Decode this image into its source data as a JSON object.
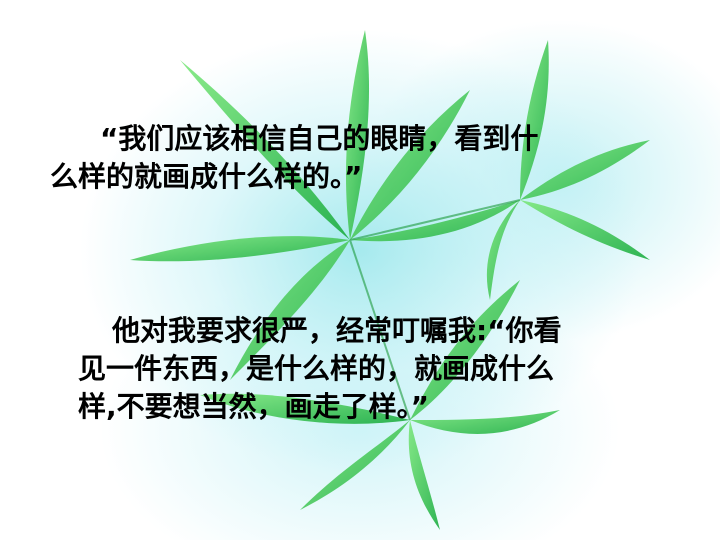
{
  "slide": {
    "quote1_lines": [
      "“我们应该相信自己的眼睛，看到什",
      "么样的就画成什么样的。”"
    ],
    "quote2_lines": [
      "他对我要求很严，经常叮嘱我:“你看",
      "见一件东西，是什么样的，就画成什么",
      "样,不要想当然，画走了样。”"
    ]
  },
  "colors": {
    "leaf": "#3fd05a",
    "leaf_dark": "#22a83f",
    "glow": "#a8ecef",
    "text": "#000000"
  },
  "icons": {
    "background": "leaf-cluster-icon"
  }
}
